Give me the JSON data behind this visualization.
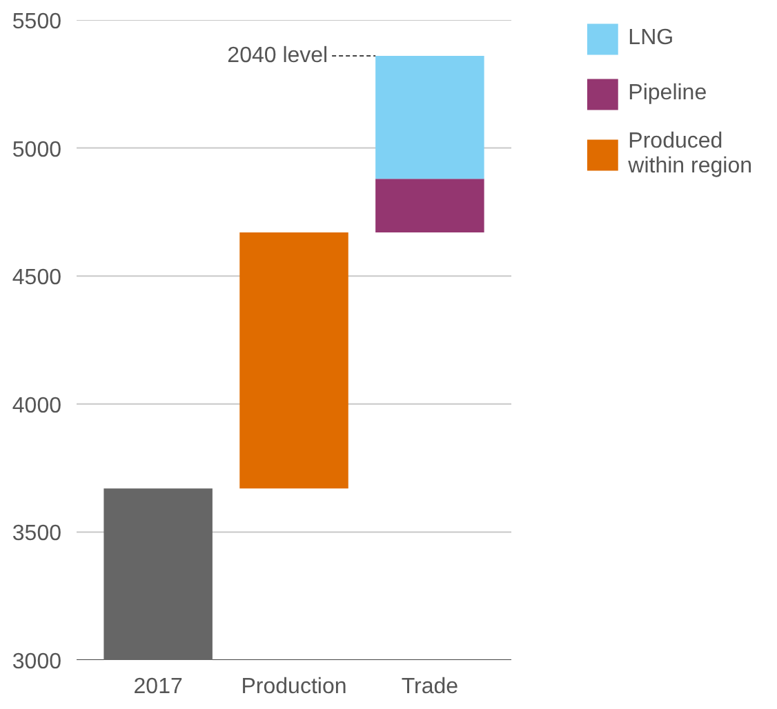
{
  "chart_data": {
    "type": "bar",
    "categories": [
      "2017",
      "Production",
      "Trade"
    ],
    "series": [
      {
        "color": "#666666",
        "values": [
          3670,
          null,
          null
        ]
      },
      {
        "name": "Produced within region",
        "color": "#e06c00",
        "values": [
          null,
          1000,
          null
        ],
        "base": [
          null,
          3670,
          null
        ]
      },
      {
        "name": "Pipeline",
        "color": "#943670",
        "values": [
          null,
          null,
          210
        ],
        "base": [
          null,
          null,
          4670
        ]
      },
      {
        "name": "LNG",
        "color": "#7fd1f4",
        "values": [
          null,
          null,
          480
        ],
        "base": [
          null,
          null,
          4880
        ]
      }
    ],
    "ylim": [
      3000,
      5500
    ],
    "yticks": [
      3000,
      3500,
      4000,
      4500,
      5000,
      5500
    ],
    "grid": "y",
    "legend": "right",
    "ref_lines": [
      {
        "axis": "y",
        "value": 5360,
        "label": "2040 level",
        "line_style": "dashed"
      }
    ]
  }
}
